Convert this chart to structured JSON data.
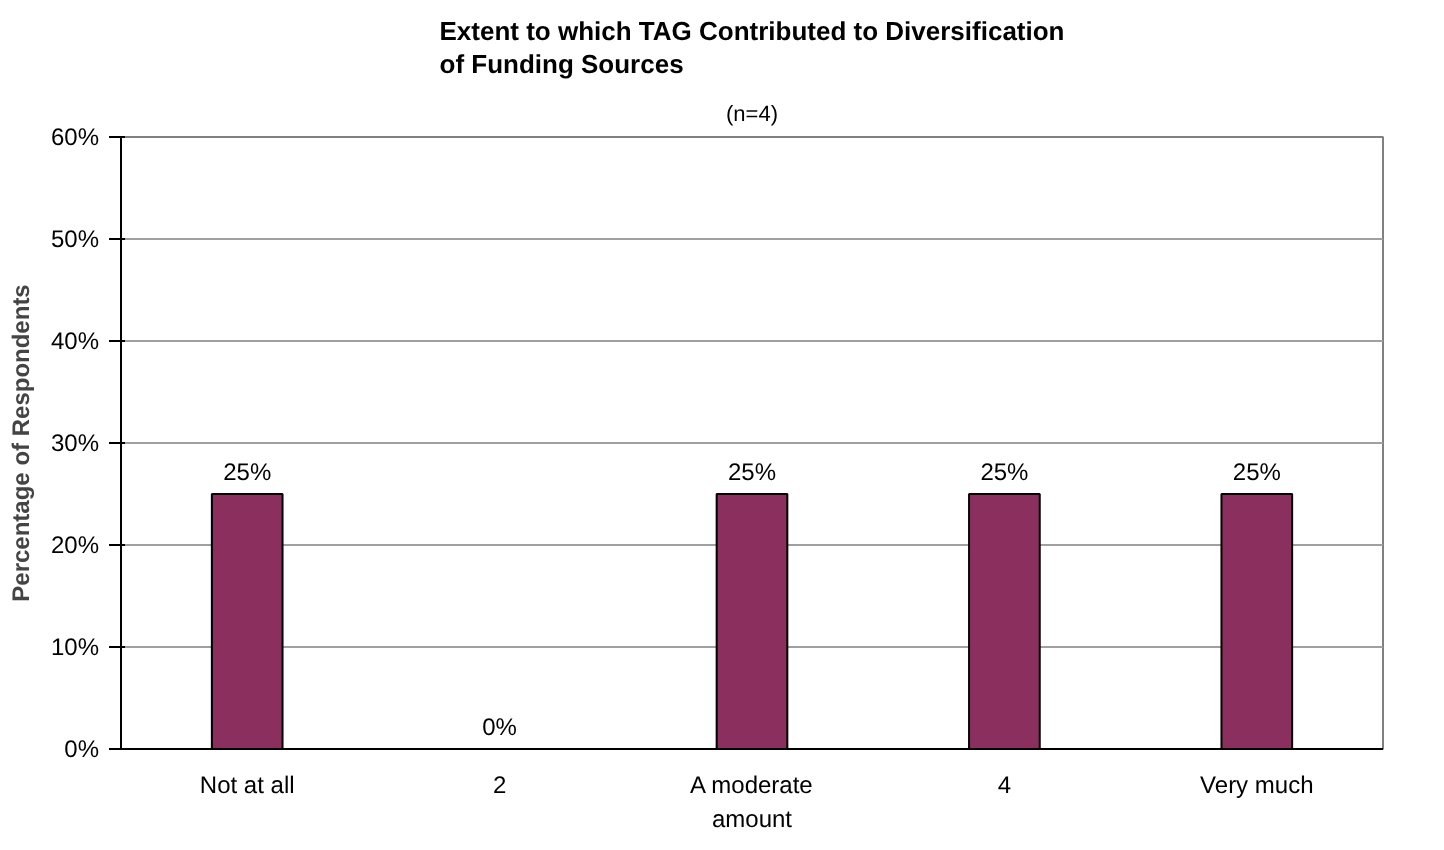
{
  "chart_data": {
    "type": "bar",
    "title": "Extent to which TAG Contributed to Diversification of Funding Sources",
    "subtitle": "(n=4)",
    "ylabel": "Percentage of Respondents",
    "categories": [
      "Not at all",
      "2",
      "A moderate\namount",
      "4",
      "Very much"
    ],
    "values": [
      25,
      0,
      25,
      25,
      25
    ],
    "color": "#8a2f5e",
    "value_labels": [
      "25%",
      "0%",
      "25%",
      "25%",
      "25%"
    ],
    "ylim": [
      0,
      60
    ],
    "yticks": [
      {
        "value": 0,
        "label": "0%"
      },
      {
        "value": 10,
        "label": "10%"
      },
      {
        "value": 20,
        "label": "20%"
      },
      {
        "value": 30,
        "label": "30%"
      },
      {
        "value": 40,
        "label": "40%"
      },
      {
        "value": 50,
        "label": "50%"
      },
      {
        "value": 60,
        "label": "60%"
      }
    ],
    "grid": "y"
  }
}
